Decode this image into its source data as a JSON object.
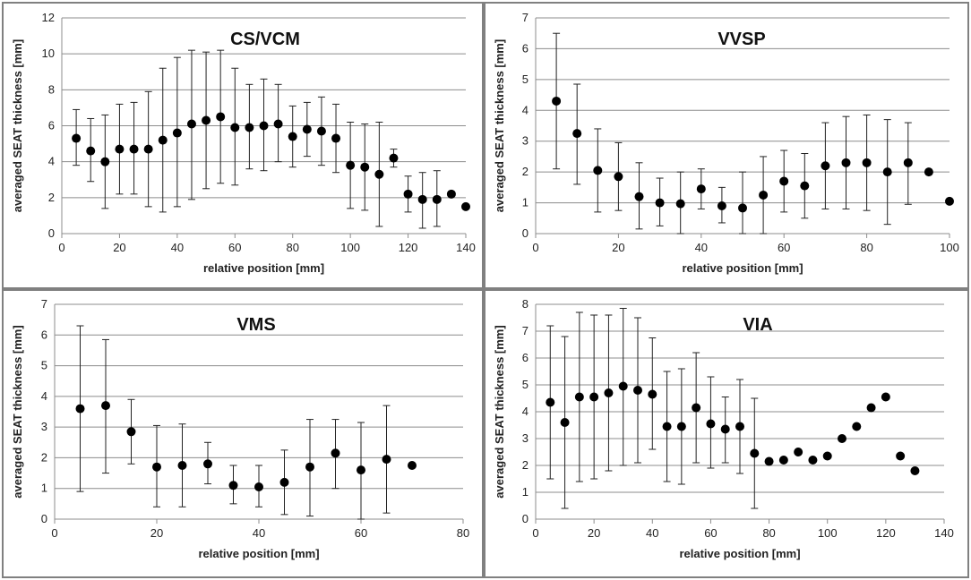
{
  "chart_data": [
    {
      "type": "scatter",
      "title": "CS/VCM",
      "xlabel": "relative position [mm]",
      "ylabel": "averaged SEAT thickness [mm]",
      "xlim": [
        0,
        140
      ],
      "ylim": [
        0,
        12
      ],
      "xticks": [
        0,
        20,
        40,
        60,
        80,
        100,
        120,
        140
      ],
      "yticks": [
        0,
        2,
        4,
        6,
        8,
        10,
        12
      ],
      "error_bars": true,
      "points": [
        {
          "x": 5,
          "y": 5.3,
          "lo": 3.8,
          "hi": 6.9
        },
        {
          "x": 10,
          "y": 4.6,
          "lo": 2.9,
          "hi": 6.4
        },
        {
          "x": 15,
          "y": 4.0,
          "lo": 1.4,
          "hi": 6.6
        },
        {
          "x": 20,
          "y": 4.7,
          "lo": 2.2,
          "hi": 7.2
        },
        {
          "x": 25,
          "y": 4.7,
          "lo": 2.2,
          "hi": 7.3
        },
        {
          "x": 30,
          "y": 4.7,
          "lo": 1.5,
          "hi": 7.9
        },
        {
          "x": 35,
          "y": 5.2,
          "lo": 1.2,
          "hi": 9.2
        },
        {
          "x": 40,
          "y": 5.6,
          "lo": 1.5,
          "hi": 9.8
        },
        {
          "x": 45,
          "y": 6.1,
          "lo": 1.9,
          "hi": 10.2
        },
        {
          "x": 50,
          "y": 6.3,
          "lo": 2.5,
          "hi": 10.1
        },
        {
          "x": 55,
          "y": 6.5,
          "lo": 2.8,
          "hi": 10.2
        },
        {
          "x": 60,
          "y": 5.9,
          "lo": 2.7,
          "hi": 9.2
        },
        {
          "x": 65,
          "y": 5.9,
          "lo": 3.6,
          "hi": 8.3
        },
        {
          "x": 70,
          "y": 6.0,
          "lo": 3.5,
          "hi": 8.6
        },
        {
          "x": 75,
          "y": 6.1,
          "lo": 4.0,
          "hi": 8.3
        },
        {
          "x": 80,
          "y": 5.4,
          "lo": 3.7,
          "hi": 7.1
        },
        {
          "x": 85,
          "y": 5.8,
          "lo": 4.3,
          "hi": 7.3
        },
        {
          "x": 90,
          "y": 5.7,
          "lo": 3.8,
          "hi": 7.6
        },
        {
          "x": 95,
          "y": 5.3,
          "lo": 3.4,
          "hi": 7.2
        },
        {
          "x": 100,
          "y": 3.8,
          "lo": 1.4,
          "hi": 6.2
        },
        {
          "x": 105,
          "y": 3.7,
          "lo": 1.3,
          "hi": 6.1
        },
        {
          "x": 110,
          "y": 3.3,
          "lo": 0.4,
          "hi": 6.2
        },
        {
          "x": 115,
          "y": 4.2,
          "lo": 3.7,
          "hi": 4.7
        },
        {
          "x": 120,
          "y": 2.2,
          "lo": 1.2,
          "hi": 3.2
        },
        {
          "x": 125,
          "y": 1.9,
          "lo": 0.3,
          "hi": 3.4
        },
        {
          "x": 130,
          "y": 1.9,
          "lo": 0.4,
          "hi": 3.5
        },
        {
          "x": 135,
          "y": 2.2,
          "lo": null,
          "hi": null
        },
        {
          "x": 140,
          "y": 1.5,
          "lo": null,
          "hi": null
        }
      ]
    },
    {
      "type": "scatter",
      "title": "VVSP",
      "xlabel": "relative position [mm]",
      "ylabel": "averaged SEAT thickness [mm]",
      "xlim": [
        0,
        100
      ],
      "ylim": [
        0,
        7
      ],
      "xticks": [
        0,
        20,
        40,
        60,
        80,
        100
      ],
      "yticks": [
        0,
        1,
        2,
        3,
        4,
        5,
        6,
        7
      ],
      "error_bars": true,
      "points": [
        {
          "x": 5,
          "y": 4.3,
          "lo": 2.1,
          "hi": 6.5
        },
        {
          "x": 10,
          "y": 3.25,
          "lo": 1.6,
          "hi": 4.85
        },
        {
          "x": 15,
          "y": 2.05,
          "lo": 0.7,
          "hi": 3.4
        },
        {
          "x": 20,
          "y": 1.85,
          "lo": 0.75,
          "hi": 2.95
        },
        {
          "x": 25,
          "y": 1.2,
          "lo": 0.15,
          "hi": 2.3
        },
        {
          "x": 30,
          "y": 1.0,
          "lo": 0.25,
          "hi": 1.8
        },
        {
          "x": 35,
          "y": 0.97,
          "lo": 0.0,
          "hi": 2.0
        },
        {
          "x": 40,
          "y": 1.45,
          "lo": 0.8,
          "hi": 2.1
        },
        {
          "x": 45,
          "y": 0.9,
          "lo": 0.35,
          "hi": 1.5
        },
        {
          "x": 50,
          "y": 0.83,
          "lo": 0.0,
          "hi": 2.0
        },
        {
          "x": 55,
          "y": 1.25,
          "lo": 0.0,
          "hi": 2.5
        },
        {
          "x": 60,
          "y": 1.7,
          "lo": 0.7,
          "hi": 2.7
        },
        {
          "x": 65,
          "y": 1.55,
          "lo": 0.5,
          "hi": 2.6
        },
        {
          "x": 70,
          "y": 2.2,
          "lo": 0.8,
          "hi": 3.6
        },
        {
          "x": 75,
          "y": 2.3,
          "lo": 0.8,
          "hi": 3.8
        },
        {
          "x": 80,
          "y": 2.3,
          "lo": 0.75,
          "hi": 3.85
        },
        {
          "x": 85,
          "y": 2.0,
          "lo": 0.3,
          "hi": 3.7
        },
        {
          "x": 90,
          "y": 2.3,
          "lo": 0.95,
          "hi": 3.6
        },
        {
          "x": 95,
          "y": 2.0,
          "lo": null,
          "hi": null
        },
        {
          "x": 100,
          "y": 1.05,
          "lo": null,
          "hi": null
        }
      ]
    },
    {
      "type": "scatter",
      "title": "VMS",
      "xlabel": "relative position [mm]",
      "ylabel": "averaged SEAT thickness [mm]",
      "xlim": [
        0,
        80
      ],
      "ylim": [
        0,
        7
      ],
      "xticks": [
        0,
        20,
        40,
        60,
        80
      ],
      "yticks": [
        0,
        1,
        2,
        3,
        4,
        5,
        6,
        7
      ],
      "error_bars": true,
      "points": [
        {
          "x": 5,
          "y": 3.6,
          "lo": 0.9,
          "hi": 6.3
        },
        {
          "x": 10,
          "y": 3.7,
          "lo": 1.5,
          "hi": 5.85
        },
        {
          "x": 15,
          "y": 2.85,
          "lo": 1.8,
          "hi": 3.9
        },
        {
          "x": 20,
          "y": 1.7,
          "lo": 0.4,
          "hi": 3.05
        },
        {
          "x": 25,
          "y": 1.75,
          "lo": 0.4,
          "hi": 3.1
        },
        {
          "x": 30,
          "y": 1.8,
          "lo": 1.15,
          "hi": 2.5
        },
        {
          "x": 35,
          "y": 1.1,
          "lo": 0.5,
          "hi": 1.75
        },
        {
          "x": 40,
          "y": 1.05,
          "lo": 0.4,
          "hi": 1.75
        },
        {
          "x": 45,
          "y": 1.2,
          "lo": 0.15,
          "hi": 2.25
        },
        {
          "x": 50,
          "y": 1.7,
          "lo": 0.1,
          "hi": 3.25
        },
        {
          "x": 55,
          "y": 2.15,
          "lo": 1.0,
          "hi": 3.25
        },
        {
          "x": 60,
          "y": 1.6,
          "lo": 0.0,
          "hi": 3.15
        },
        {
          "x": 65,
          "y": 1.95,
          "lo": 0.2,
          "hi": 3.7
        },
        {
          "x": 70,
          "y": 1.75,
          "lo": null,
          "hi": null
        }
      ]
    },
    {
      "type": "scatter",
      "title": "VIA",
      "xlabel": "relative position [mm]",
      "ylabel": "averaged SEAT thickness [mm]",
      "xlim": [
        0,
        140
      ],
      "ylim": [
        0,
        8
      ],
      "xticks": [
        0,
        20,
        40,
        60,
        80,
        100,
        120,
        140
      ],
      "yticks": [
        0,
        1,
        2,
        3,
        4,
        5,
        6,
        7,
        8
      ],
      "error_bars": true,
      "points": [
        {
          "x": 5,
          "y": 4.35,
          "lo": 1.5,
          "hi": 7.2
        },
        {
          "x": 10,
          "y": 3.6,
          "lo": 0.4,
          "hi": 6.8
        },
        {
          "x": 15,
          "y": 4.55,
          "lo": 1.4,
          "hi": 7.7
        },
        {
          "x": 20,
          "y": 4.55,
          "lo": 1.5,
          "hi": 7.6
        },
        {
          "x": 25,
          "y": 4.7,
          "lo": 1.8,
          "hi": 7.6
        },
        {
          "x": 30,
          "y": 4.95,
          "lo": 2.0,
          "hi": 7.85
        },
        {
          "x": 35,
          "y": 4.8,
          "lo": 2.1,
          "hi": 7.5
        },
        {
          "x": 40,
          "y": 4.65,
          "lo": 2.6,
          "hi": 6.75
        },
        {
          "x": 45,
          "y": 3.45,
          "lo": 1.4,
          "hi": 5.5
        },
        {
          "x": 50,
          "y": 3.45,
          "lo": 1.3,
          "hi": 5.6
        },
        {
          "x": 55,
          "y": 4.15,
          "lo": 2.1,
          "hi": 6.2
        },
        {
          "x": 60,
          "y": 3.55,
          "lo": 1.9,
          "hi": 5.3
        },
        {
          "x": 65,
          "y": 3.35,
          "lo": 2.1,
          "hi": 4.55
        },
        {
          "x": 70,
          "y": 3.45,
          "lo": 1.7,
          "hi": 5.2
        },
        {
          "x": 75,
          "y": 2.45,
          "lo": 0.4,
          "hi": 4.5
        },
        {
          "x": 80,
          "y": 2.15,
          "lo": null,
          "hi": null
        },
        {
          "x": 85,
          "y": 2.2,
          "lo": null,
          "hi": null
        },
        {
          "x": 90,
          "y": 2.5,
          "lo": null,
          "hi": null
        },
        {
          "x": 95,
          "y": 2.2,
          "lo": null,
          "hi": null
        },
        {
          "x": 100,
          "y": 2.35,
          "lo": null,
          "hi": null
        },
        {
          "x": 105,
          "y": 3.0,
          "lo": null,
          "hi": null
        },
        {
          "x": 110,
          "y": 3.45,
          "lo": null,
          "hi": null
        },
        {
          "x": 115,
          "y": 4.15,
          "lo": null,
          "hi": null
        },
        {
          "x": 120,
          "y": 4.55,
          "lo": null,
          "hi": null
        },
        {
          "x": 125,
          "y": 2.35,
          "lo": null,
          "hi": null
        },
        {
          "x": 130,
          "y": 1.8,
          "lo": null,
          "hi": null
        }
      ]
    }
  ]
}
